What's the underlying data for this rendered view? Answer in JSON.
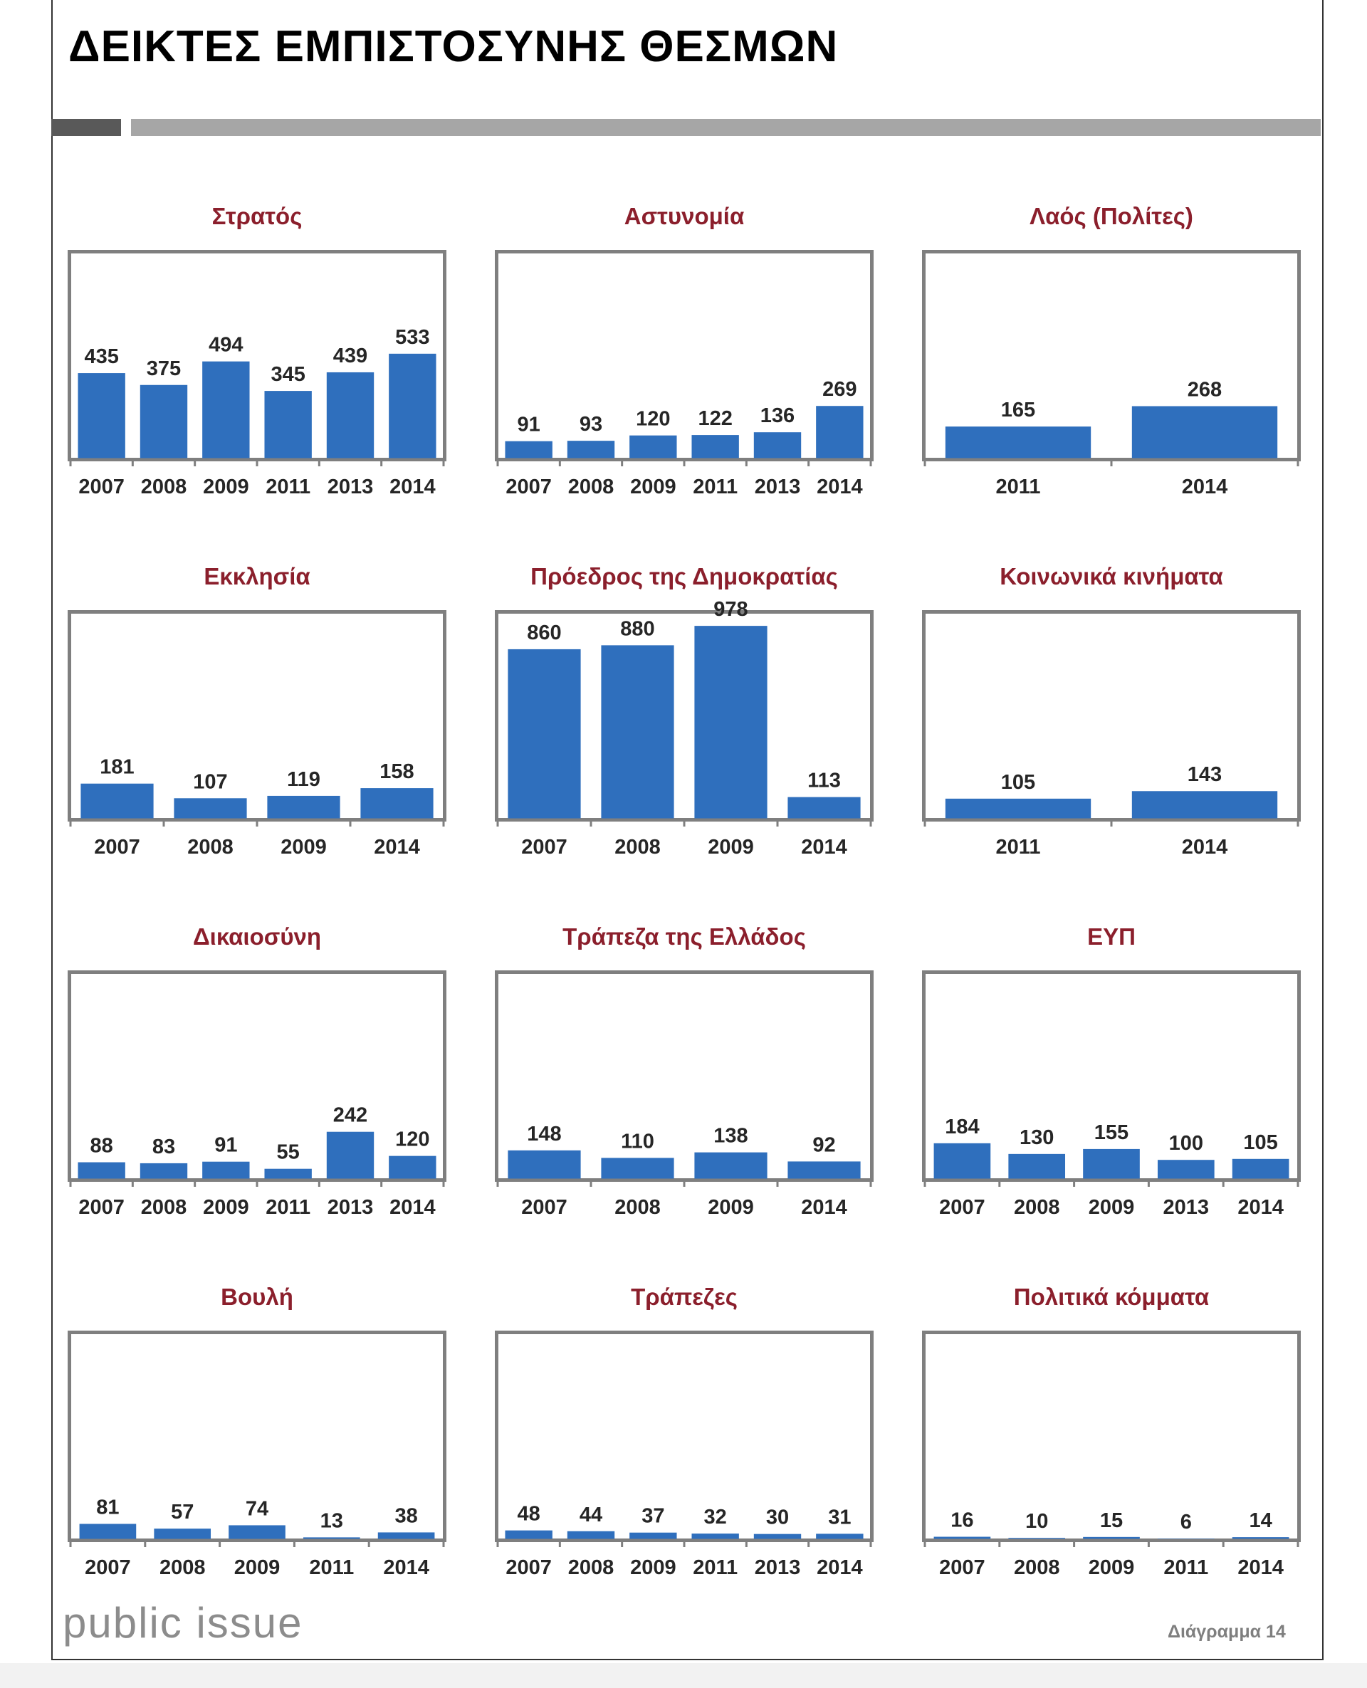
{
  "page": {
    "title": "ΔΕΙΚΤΕΣ ΕΜΠΙΣΤΟΣΥΝΗΣ ΘΕΣΜΩΝ",
    "logo": "public issue",
    "diagram_label": "Διάγραμμα 14"
  },
  "colors": {
    "bar": "#2f6fbd",
    "title_red": "#8b1f2c",
    "frame": "#7f7f7f"
  },
  "chart_data": [
    {
      "type": "bar",
      "title": "Στρατός",
      "categories": [
        "2007",
        "2008",
        "2009",
        "2011",
        "2013",
        "2014"
      ],
      "values": [
        435,
        375,
        494,
        345,
        439,
        533
      ]
    },
    {
      "type": "bar",
      "title": "Αστυνομία",
      "categories": [
        "2007",
        "2008",
        "2009",
        "2011",
        "2013",
        "2014"
      ],
      "values": [
        91,
        93,
        120,
        122,
        136,
        269
      ]
    },
    {
      "type": "bar",
      "title": "Λαός (Πολίτες)",
      "categories": [
        "2011",
        "2014"
      ],
      "values": [
        165,
        268
      ]
    },
    {
      "type": "bar",
      "title": "Εκκλησία",
      "categories": [
        "2007",
        "2008",
        "2009",
        "2014"
      ],
      "values": [
        181,
        107,
        119,
        158
      ]
    },
    {
      "type": "bar",
      "title": "Πρόεδρος της Δημοκρατίας",
      "categories": [
        "2007",
        "2008",
        "2009",
        "2014"
      ],
      "values": [
        860,
        880,
        978,
        113
      ]
    },
    {
      "type": "bar",
      "title": "Κοινωνικά κινήματα",
      "categories": [
        "2011",
        "2014"
      ],
      "values": [
        105,
        143
      ]
    },
    {
      "type": "bar",
      "title": "Δικαιοσύνη",
      "categories": [
        "2007",
        "2008",
        "2009",
        "2011",
        "2013",
        "2014"
      ],
      "values": [
        88,
        83,
        91,
        55,
        242,
        120
      ]
    },
    {
      "type": "bar",
      "title": "Τράπεζα της Ελλάδος",
      "categories": [
        "2007",
        "2008",
        "2009",
        "2014"
      ],
      "values": [
        148,
        110,
        138,
        92
      ]
    },
    {
      "type": "bar",
      "title": "ΕΥΠ",
      "categories": [
        "2007",
        "2008",
        "2009",
        "2013",
        "2014"
      ],
      "values": [
        184,
        130,
        155,
        100,
        105
      ]
    },
    {
      "type": "bar",
      "title": "Βουλή",
      "categories": [
        "2007",
        "2008",
        "2009",
        "2011",
        "2014"
      ],
      "values": [
        81,
        57,
        74,
        13,
        38
      ]
    },
    {
      "type": "bar",
      "title": "Τράπεζες",
      "categories": [
        "2007",
        "2008",
        "2009",
        "2011",
        "2013",
        "2014"
      ],
      "values": [
        48,
        44,
        37,
        32,
        30,
        31
      ]
    },
    {
      "type": "bar",
      "title": "Πολιτικά κόμματα",
      "categories": [
        "2007",
        "2008",
        "2009",
        "2011",
        "2014"
      ],
      "values": [
        16,
        10,
        15,
        6,
        14
      ]
    }
  ]
}
